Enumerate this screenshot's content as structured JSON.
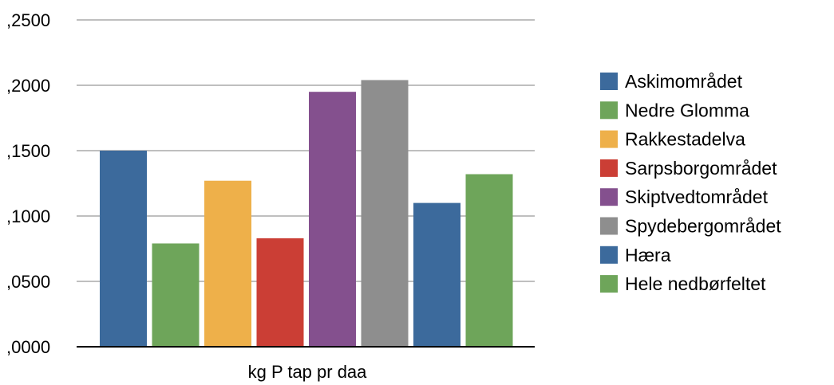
{
  "chart_data": {
    "type": "bar",
    "title": "",
    "xlabel": "kg P tap pr daa",
    "ylabel": "",
    "ylim": [
      0,
      0.25
    ],
    "y_ticks": [
      {
        "value": 0.0,
        "label": ",0000"
      },
      {
        "value": 0.05,
        "label": ",0500"
      },
      {
        "value": 0.1,
        "label": ",1000"
      },
      {
        "value": 0.15,
        "label": ",1500"
      },
      {
        "value": 0.2,
        "label": ",2000"
      },
      {
        "value": 0.25,
        "label": ",2500"
      }
    ],
    "grid": true,
    "legend_position": "right",
    "series": [
      {
        "name": "Askimområdet",
        "value": 0.15,
        "color": "#3C6A9C"
      },
      {
        "name": "Nedre Glomma",
        "value": 0.079,
        "color": "#6EA55A"
      },
      {
        "name": "Rakkestadelva",
        "value": 0.127,
        "color": "#EEB04A"
      },
      {
        "name": "Sarpsborgområdet",
        "value": 0.083,
        "color": "#CB3E35"
      },
      {
        "name": "Skiptvedtområdet",
        "value": 0.195,
        "color": "#84508E"
      },
      {
        "name": "Spydebergområdet",
        "value": 0.204,
        "color": "#8E8E8E"
      },
      {
        "name": "Hæra",
        "value": 0.11,
        "color": "#3C6A9C"
      },
      {
        "name": "Hele nedbørfeltet",
        "value": 0.132,
        "color": "#6EA55A"
      }
    ]
  }
}
